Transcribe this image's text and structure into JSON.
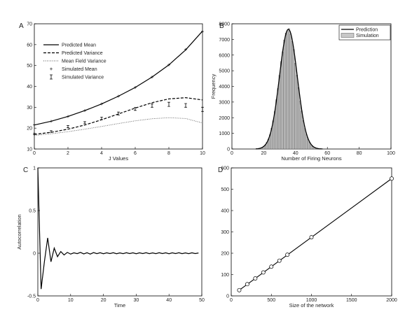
{
  "chart_data": [
    {
      "panel": "A",
      "type": "line",
      "xlabel": "J Values",
      "ylabel": "",
      "xlim": [
        0,
        10
      ],
      "ylim": [
        10,
        70
      ],
      "xticks": [
        0,
        2,
        4,
        6,
        8,
        10
      ],
      "yticks": [
        10,
        20,
        30,
        40,
        50,
        60,
        70
      ],
      "legend": "top-left",
      "series": [
        {
          "name": "Predicted Mean",
          "style": "solid",
          "x": [
            0,
            1,
            2,
            3,
            4,
            5,
            6,
            7,
            8,
            9,
            10
          ],
          "y": [
            21.5,
            23.3,
            25.6,
            28.4,
            31.6,
            35.3,
            39.5,
            44.5,
            50.3,
            57.5,
            66.5
          ]
        },
        {
          "name": "Predicted Variance",
          "style": "dashed",
          "x": [
            0,
            1,
            2,
            3,
            4,
            5,
            6,
            7,
            8,
            9,
            10
          ],
          "y": [
            17.0,
            18.0,
            19.5,
            21.5,
            24.0,
            26.8,
            29.6,
            32.2,
            34.0,
            34.6,
            33.5
          ]
        },
        {
          "name": "Mean Field Variance",
          "style": "dotted",
          "x": [
            0,
            1,
            2,
            3,
            4,
            5,
            6,
            7,
            8,
            9,
            10
          ],
          "y": [
            16.5,
            17.3,
            18.3,
            19.5,
            20.8,
            22.2,
            23.5,
            24.5,
            25.0,
            24.6,
            22.5
          ]
        },
        {
          "name": "Simulated Mean",
          "style": "plus",
          "x": [
            0,
            1,
            2,
            3,
            4,
            5,
            6,
            7,
            8,
            9,
            10
          ],
          "y": [
            21.5,
            23.3,
            25.6,
            28.4,
            31.6,
            35.3,
            39.5,
            44.5,
            50.3,
            57.7,
            66.3
          ]
        },
        {
          "name": "Simulated Variance",
          "style": "errorbar",
          "x": [
            0,
            1,
            2,
            3,
            4,
            5,
            6,
            7,
            8,
            9,
            10
          ],
          "y": [
            17.2,
            18.4,
            20.7,
            22.6,
            24.7,
            27.0,
            29.2,
            30.8,
            31.4,
            30.9,
            29.0
          ],
          "err": [
            0.3,
            0.4,
            0.5,
            0.5,
            0.6,
            0.7,
            0.7,
            0.8,
            1.0,
            0.9,
            1.0
          ]
        }
      ]
    },
    {
      "panel": "B",
      "type": "bar",
      "xlabel": "Number of Firing Neurons",
      "ylabel": "Frequency",
      "xlim": [
        0,
        100
      ],
      "ylim": [
        0,
        8000
      ],
      "xticks": [
        0,
        20,
        40,
        60,
        80,
        100
      ],
      "yticks": [
        0,
        1000,
        2000,
        3000,
        4000,
        5000,
        6000,
        7000,
        8000
      ],
      "legend": "top-right",
      "distribution": {
        "mean": 35.5,
        "sd": 5.6,
        "peak": 7650,
        "x_from": 18,
        "x_to": 54
      },
      "series": [
        {
          "name": "Prediction",
          "style": "line"
        },
        {
          "name": "Simulation",
          "style": "bars"
        }
      ]
    },
    {
      "panel": "C",
      "type": "line",
      "xlabel": "Time",
      "ylabel": "Autocorrelation",
      "xlim": [
        0,
        50
      ],
      "ylim": [
        -0.5,
        1
      ],
      "xticks": [
        0,
        10,
        20,
        30,
        40,
        50
      ],
      "yticks": [
        -0.5,
        0,
        0.5,
        1
      ],
      "series": [
        {
          "name": "",
          "x": [
            0,
            1,
            2,
            3,
            4,
            5,
            6,
            7,
            8,
            9,
            10,
            11,
            12,
            13,
            14,
            15,
            16,
            17,
            18,
            19,
            20,
            21,
            22,
            23,
            24,
            25,
            26,
            27,
            28,
            29,
            30,
            31,
            32,
            33,
            34,
            35,
            36,
            37,
            38,
            39,
            40,
            41,
            42,
            43,
            44,
            45,
            46,
            47,
            48,
            49
          ],
          "y": [
            1.0,
            -0.42,
            -0.1,
            0.18,
            -0.1,
            0.06,
            -0.04,
            0.02,
            -0.02,
            0.01,
            -0.01,
            0.005,
            -0.005,
            0.01,
            -0.008,
            0.006,
            -0.01,
            0.008,
            -0.005,
            0.006,
            -0.006,
            0.005,
            -0.004,
            0.006,
            -0.006,
            0.004,
            -0.005,
            0.006,
            -0.004,
            0.005,
            -0.006,
            0.005,
            -0.004,
            0.006,
            -0.005,
            0.004,
            -0.005,
            0.006,
            -0.004,
            0.005,
            -0.006,
            0.005,
            -0.004,
            0.006,
            -0.005,
            0.004,
            -0.005,
            0.005,
            -0.004,
            0.003
          ]
        }
      ]
    },
    {
      "panel": "D",
      "type": "scatter",
      "xlabel": "Size of the network",
      "ylabel": "",
      "xlim": [
        0,
        2000
      ],
      "ylim": [
        0,
        600
      ],
      "xticks": [
        0,
        500,
        1000,
        1500,
        2000
      ],
      "yticks": [
        0,
        100,
        200,
        300,
        400,
        500,
        600
      ],
      "series": [
        {
          "name": "",
          "style": "markers",
          "x": [
            100,
            200,
            300,
            400,
            500,
            600,
            700,
            1000,
            2000
          ],
          "y": [
            27,
            55,
            82,
            110,
            137,
            165,
            193,
            275,
            550
          ]
        },
        {
          "name": "",
          "style": "line",
          "x": [
            100,
            2000
          ],
          "y": [
            27,
            550
          ]
        }
      ]
    }
  ]
}
